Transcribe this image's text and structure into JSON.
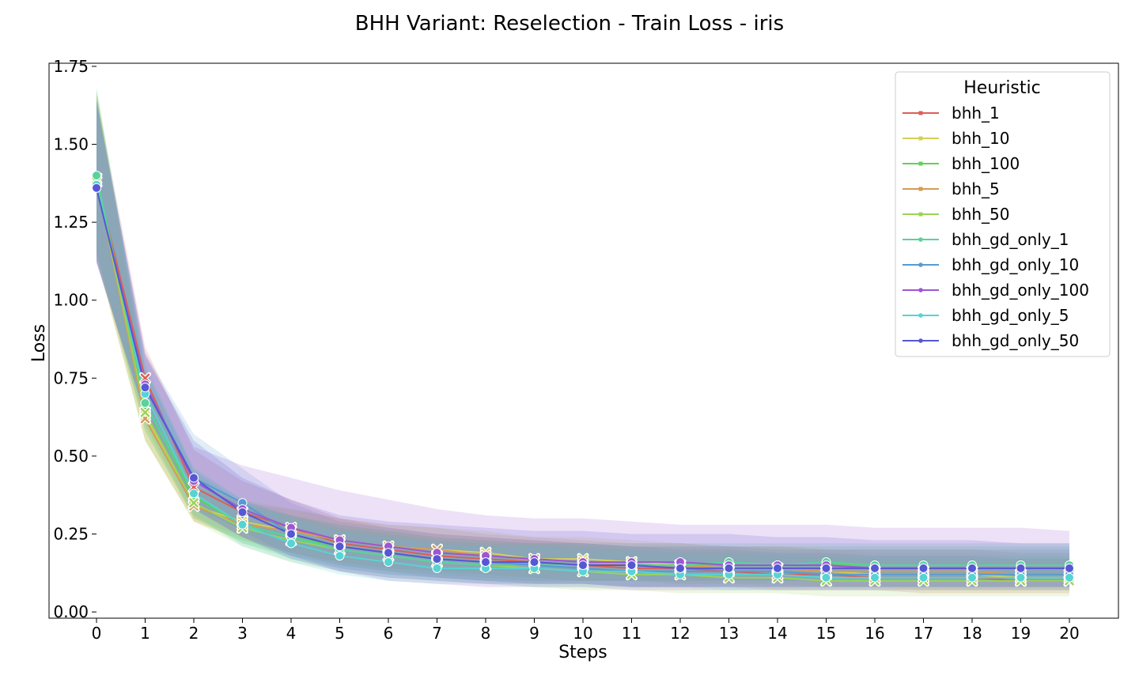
{
  "chart_data": {
    "type": "line",
    "title": "BHH Variant: Reselection - Train Loss - iris",
    "xlabel": "Steps",
    "ylabel": "Loss",
    "xlim": [
      0,
      20
    ],
    "ylim": [
      -0.02,
      1.76
    ],
    "x": [
      0,
      1,
      2,
      3,
      4,
      5,
      6,
      7,
      8,
      9,
      10,
      11,
      12,
      13,
      14,
      15,
      16,
      17,
      18,
      19,
      20
    ],
    "xticks": [
      "0",
      "1",
      "2",
      "3",
      "4",
      "5",
      "6",
      "7",
      "8",
      "9",
      "10",
      "11",
      "12",
      "13",
      "14",
      "15",
      "16",
      "17",
      "18",
      "19",
      "20"
    ],
    "yticks": [
      "0.00",
      "0.25",
      "0.50",
      "0.75",
      "1.00",
      "1.25",
      "1.50",
      "1.75"
    ],
    "grid": false,
    "legend": {
      "title": "Heuristic",
      "placement": "top-right"
    },
    "series": [
      {
        "name": "bhh_1",
        "color": "#db5f57",
        "marker": "x",
        "values": [
          1.38,
          0.75,
          0.4,
          0.32,
          0.27,
          0.22,
          0.2,
          0.18,
          0.17,
          0.16,
          0.15,
          0.14,
          0.14,
          0.13,
          0.12,
          0.12,
          0.11,
          0.11,
          0.11,
          0.1,
          0.1
        ],
        "lower": [
          1.13,
          0.6,
          0.3,
          0.24,
          0.19,
          0.15,
          0.13,
          0.11,
          0.1,
          0.09,
          0.09,
          0.08,
          0.08,
          0.08,
          0.07,
          0.07,
          0.07,
          0.06,
          0.06,
          0.06,
          0.06
        ],
        "upper": [
          1.66,
          0.85,
          0.52,
          0.42,
          0.36,
          0.3,
          0.27,
          0.25,
          0.24,
          0.23,
          0.22,
          0.21,
          0.2,
          0.2,
          0.19,
          0.19,
          0.18,
          0.18,
          0.18,
          0.17,
          0.17
        ]
      },
      {
        "name": "bhh_10",
        "color": "#d3d057",
        "marker": "x",
        "values": [
          1.39,
          0.63,
          0.34,
          0.29,
          0.26,
          0.23,
          0.21,
          0.2,
          0.19,
          0.17,
          0.17,
          0.16,
          0.15,
          0.14,
          0.14,
          0.13,
          0.12,
          0.12,
          0.12,
          0.11,
          0.11
        ],
        "lower": [
          1.14,
          0.55,
          0.29,
          0.23,
          0.19,
          0.16,
          0.14,
          0.13,
          0.12,
          0.11,
          0.1,
          0.1,
          0.09,
          0.09,
          0.08,
          0.08,
          0.08,
          0.07,
          0.07,
          0.07,
          0.07
        ],
        "upper": [
          1.67,
          0.74,
          0.4,
          0.36,
          0.33,
          0.3,
          0.28,
          0.27,
          0.26,
          0.24,
          0.24,
          0.23,
          0.22,
          0.21,
          0.21,
          0.2,
          0.19,
          0.19,
          0.19,
          0.18,
          0.18
        ]
      },
      {
        "name": "bhh_100",
        "color": "#5ed357",
        "marker": "o",
        "values": [
          1.39,
          0.67,
          0.37,
          0.28,
          0.24,
          0.21,
          0.19,
          0.17,
          0.16,
          0.15,
          0.15,
          0.15,
          0.15,
          0.15,
          0.15,
          0.15,
          0.15,
          0.15,
          0.15,
          0.15,
          0.15
        ],
        "lower": [
          1.15,
          0.58,
          0.3,
          0.22,
          0.18,
          0.15,
          0.13,
          0.12,
          0.11,
          0.1,
          0.1,
          0.1,
          0.1,
          0.1,
          0.1,
          0.1,
          0.1,
          0.1,
          0.1,
          0.1,
          0.1
        ],
        "upper": [
          1.68,
          0.78,
          0.45,
          0.35,
          0.31,
          0.28,
          0.26,
          0.24,
          0.23,
          0.22,
          0.22,
          0.21,
          0.21,
          0.21,
          0.21,
          0.21,
          0.21,
          0.21,
          0.21,
          0.21,
          0.21
        ]
      },
      {
        "name": "bhh_5",
        "color": "#d39b57",
        "marker": "x",
        "values": [
          1.38,
          0.62,
          0.34,
          0.28,
          0.26,
          0.23,
          0.21,
          0.2,
          0.18,
          0.17,
          0.16,
          0.15,
          0.15,
          0.14,
          0.14,
          0.13,
          0.13,
          0.13,
          0.13,
          0.12,
          0.12
        ],
        "lower": [
          1.14,
          0.55,
          0.29,
          0.23,
          0.19,
          0.16,
          0.14,
          0.13,
          0.12,
          0.11,
          0.1,
          0.1,
          0.09,
          0.09,
          0.09,
          0.08,
          0.08,
          0.08,
          0.08,
          0.08,
          0.08
        ],
        "upper": [
          1.66,
          0.73,
          0.4,
          0.35,
          0.33,
          0.3,
          0.28,
          0.27,
          0.25,
          0.24,
          0.23,
          0.22,
          0.22,
          0.21,
          0.21,
          0.2,
          0.2,
          0.2,
          0.2,
          0.19,
          0.19
        ]
      },
      {
        "name": "bhh_50",
        "color": "#9bd357",
        "marker": "x",
        "values": [
          1.38,
          0.64,
          0.35,
          0.27,
          0.23,
          0.2,
          0.18,
          0.16,
          0.15,
          0.14,
          0.13,
          0.12,
          0.12,
          0.11,
          0.11,
          0.1,
          0.1,
          0.1,
          0.1,
          0.1,
          0.1
        ],
        "lower": [
          1.13,
          0.55,
          0.29,
          0.21,
          0.16,
          0.13,
          0.11,
          0.1,
          0.09,
          0.08,
          0.07,
          0.07,
          0.06,
          0.06,
          0.06,
          0.05,
          0.05,
          0.05,
          0.05,
          0.05,
          0.05
        ],
        "upper": [
          1.67,
          0.75,
          0.42,
          0.34,
          0.31,
          0.28,
          0.26,
          0.24,
          0.23,
          0.22,
          0.21,
          0.2,
          0.19,
          0.19,
          0.18,
          0.18,
          0.17,
          0.17,
          0.17,
          0.17,
          0.17
        ]
      },
      {
        "name": "bhh_gd_only_1",
        "color": "#57d39b",
        "marker": "o",
        "values": [
          1.4,
          0.67,
          0.38,
          0.28,
          0.24,
          0.2,
          0.18,
          0.16,
          0.15,
          0.15,
          0.15,
          0.15,
          0.15,
          0.16,
          0.15,
          0.16,
          0.15,
          0.15,
          0.15,
          0.15,
          0.15
        ],
        "lower": [
          1.16,
          0.58,
          0.31,
          0.22,
          0.17,
          0.14,
          0.12,
          0.11,
          0.1,
          0.1,
          0.1,
          0.1,
          0.1,
          0.1,
          0.1,
          0.1,
          0.1,
          0.1,
          0.1,
          0.1,
          0.1
        ],
        "upper": [
          1.68,
          0.78,
          0.46,
          0.36,
          0.31,
          0.27,
          0.25,
          0.23,
          0.22,
          0.22,
          0.22,
          0.22,
          0.22,
          0.22,
          0.22,
          0.22,
          0.22,
          0.22,
          0.22,
          0.22,
          0.22
        ]
      },
      {
        "name": "bhh_gd_only_10",
        "color": "#579bd3",
        "marker": "o",
        "values": [
          1.36,
          0.73,
          0.43,
          0.35,
          0.25,
          0.21,
          0.19,
          0.17,
          0.16,
          0.15,
          0.14,
          0.13,
          0.13,
          0.13,
          0.13,
          0.12,
          0.12,
          0.12,
          0.12,
          0.12,
          0.12
        ],
        "lower": [
          1.12,
          0.64,
          0.34,
          0.26,
          0.18,
          0.14,
          0.12,
          0.11,
          0.1,
          0.09,
          0.09,
          0.08,
          0.08,
          0.08,
          0.08,
          0.08,
          0.08,
          0.08,
          0.08,
          0.08,
          0.08
        ],
        "upper": [
          1.64,
          0.83,
          0.57,
          0.46,
          0.35,
          0.29,
          0.27,
          0.25,
          0.24,
          0.23,
          0.22,
          0.21,
          0.21,
          0.21,
          0.2,
          0.2,
          0.2,
          0.2,
          0.2,
          0.2,
          0.2
        ]
      },
      {
        "name": "bhh_gd_only_100",
        "color": "#9b57d3",
        "marker": "o",
        "values": [
          1.36,
          0.73,
          0.42,
          0.33,
          0.27,
          0.23,
          0.21,
          0.19,
          0.18,
          0.17,
          0.16,
          0.16,
          0.16,
          0.15,
          0.15,
          0.15,
          0.14,
          0.14,
          0.14,
          0.14,
          0.14
        ],
        "lower": [
          1.12,
          0.63,
          0.33,
          0.24,
          0.18,
          0.13,
          0.1,
          0.09,
          0.08,
          0.08,
          0.08,
          0.07,
          0.07,
          0.07,
          0.07,
          0.07,
          0.07,
          0.07,
          0.07,
          0.07,
          0.07
        ],
        "upper": [
          1.64,
          0.83,
          0.53,
          0.47,
          0.43,
          0.39,
          0.36,
          0.33,
          0.31,
          0.3,
          0.3,
          0.29,
          0.28,
          0.28,
          0.28,
          0.28,
          0.27,
          0.27,
          0.27,
          0.27,
          0.26
        ]
      },
      {
        "name": "bhh_gd_only_5",
        "color": "#57d3d3",
        "marker": "o",
        "values": [
          1.37,
          0.7,
          0.38,
          0.28,
          0.22,
          0.18,
          0.16,
          0.14,
          0.14,
          0.14,
          0.13,
          0.13,
          0.12,
          0.12,
          0.12,
          0.11,
          0.11,
          0.11,
          0.11,
          0.11,
          0.11
        ],
        "lower": [
          1.13,
          0.61,
          0.31,
          0.21,
          0.16,
          0.12,
          0.1,
          0.09,
          0.09,
          0.08,
          0.08,
          0.08,
          0.08,
          0.07,
          0.07,
          0.07,
          0.07,
          0.07,
          0.07,
          0.07,
          0.07
        ],
        "upper": [
          1.65,
          0.8,
          0.46,
          0.36,
          0.3,
          0.26,
          0.24,
          0.22,
          0.21,
          0.21,
          0.2,
          0.2,
          0.19,
          0.19,
          0.19,
          0.18,
          0.18,
          0.18,
          0.18,
          0.18,
          0.18
        ]
      },
      {
        "name": "bhh_gd_only_50",
        "color": "#5757d3",
        "marker": "o",
        "values": [
          1.36,
          0.72,
          0.43,
          0.32,
          0.25,
          0.21,
          0.19,
          0.17,
          0.16,
          0.16,
          0.15,
          0.15,
          0.14,
          0.14,
          0.14,
          0.14,
          0.14,
          0.14,
          0.14,
          0.14,
          0.14
        ],
        "lower": [
          1.12,
          0.63,
          0.33,
          0.24,
          0.17,
          0.13,
          0.11,
          0.1,
          0.09,
          0.09,
          0.09,
          0.08,
          0.08,
          0.08,
          0.08,
          0.08,
          0.08,
          0.08,
          0.08,
          0.08,
          0.08
        ],
        "upper": [
          1.64,
          0.82,
          0.55,
          0.43,
          0.36,
          0.31,
          0.29,
          0.28,
          0.27,
          0.26,
          0.26,
          0.25,
          0.25,
          0.25,
          0.24,
          0.24,
          0.23,
          0.23,
          0.23,
          0.22,
          0.22
        ]
      }
    ]
  }
}
